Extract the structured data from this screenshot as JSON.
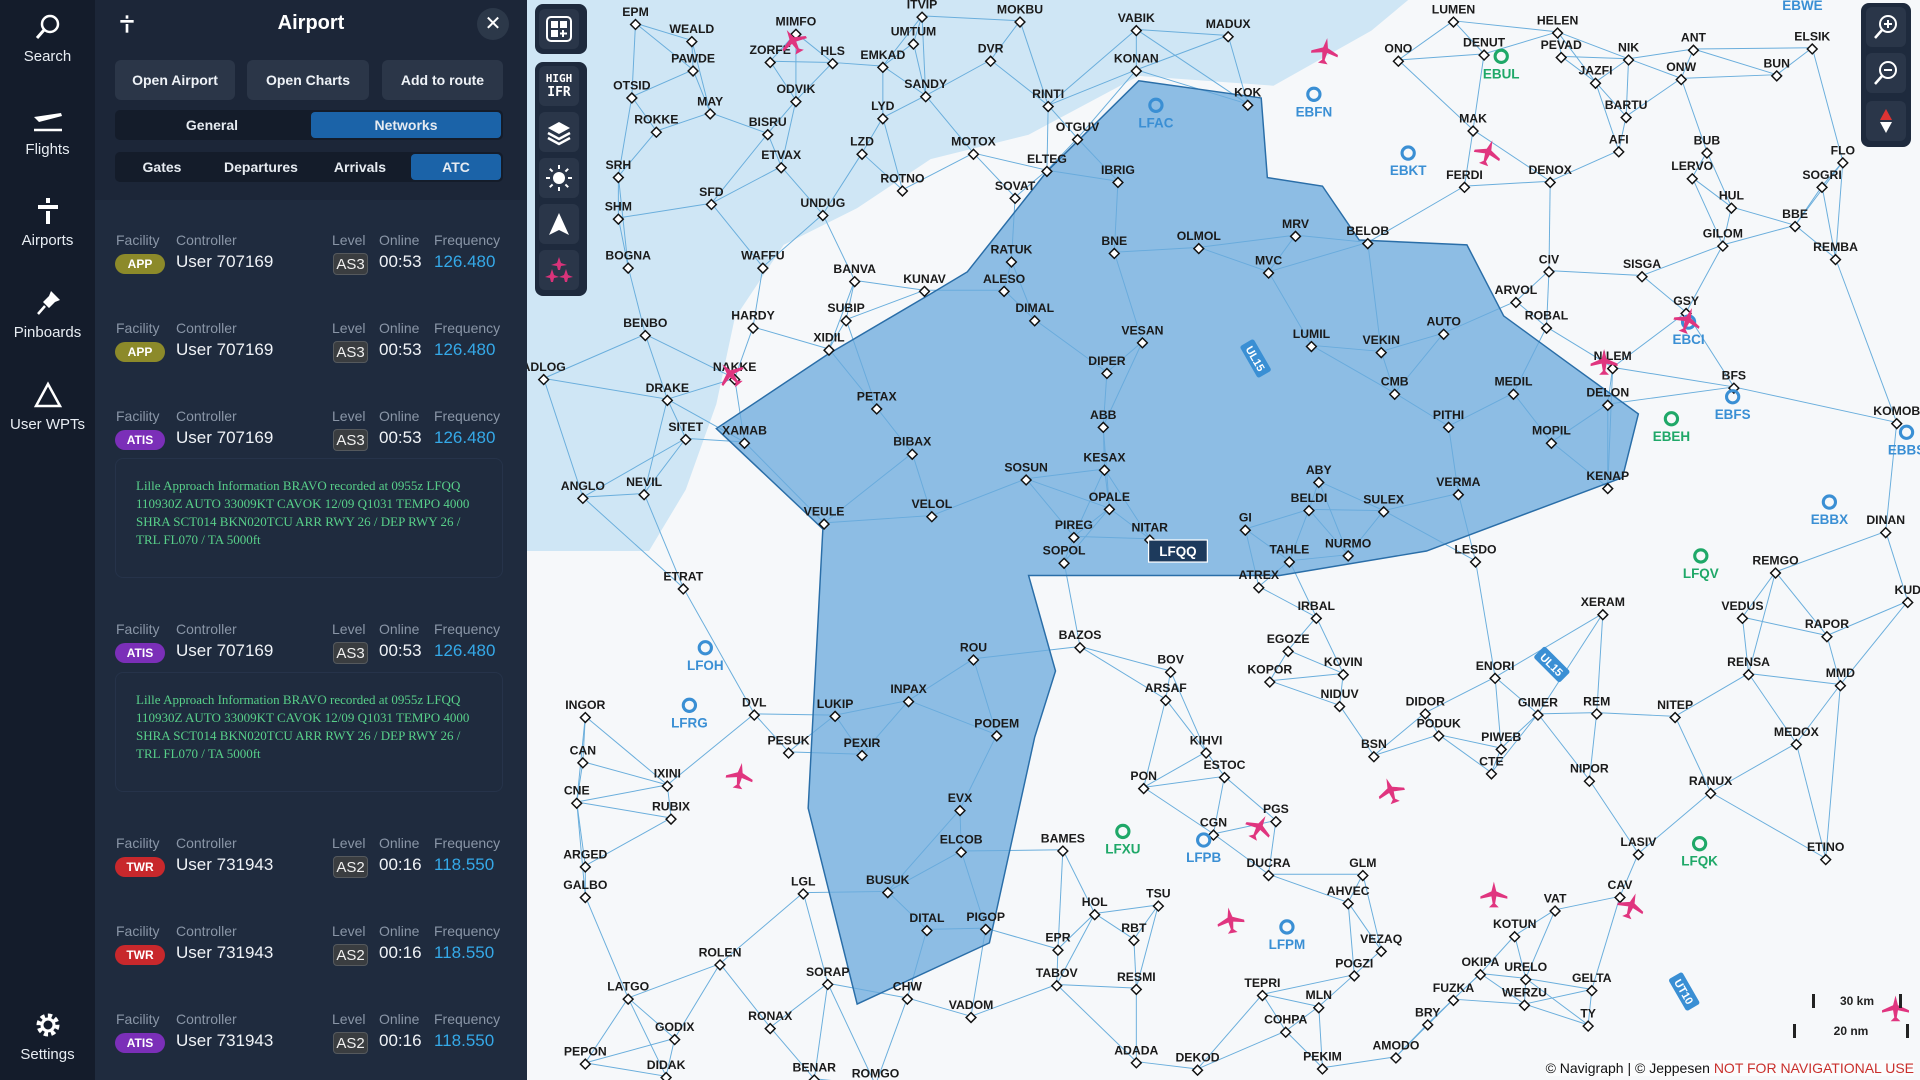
{
  "rail": {
    "items": [
      {
        "label": "Search",
        "icon": "search-icon"
      },
      {
        "label": "Flights",
        "icon": "flights-icon"
      },
      {
        "label": "Airports",
        "icon": "tower-icon"
      },
      {
        "label": "Pinboards",
        "icon": "pin-icon"
      },
      {
        "label": "User WPTs",
        "icon": "triangle-icon"
      }
    ],
    "settings": "Settings"
  },
  "panel": {
    "title": "Airport",
    "buttons": [
      "Open Airport",
      "Open Charts",
      "Add to route"
    ],
    "tabs": [
      "General",
      "Networks"
    ],
    "active_tab": "Networks",
    "subtabs": [
      "Gates",
      "Departures",
      "Arrivals",
      "ATC"
    ],
    "active_subtab": "ATC",
    "headers": {
      "facility": "Facility",
      "controller": "Controller",
      "level": "Level",
      "online": "Online",
      "frequency": "Frequency"
    },
    "rows": [
      {
        "facility": "APP",
        "controller": "User 707169",
        "level": "AS3",
        "online": "00:53",
        "frequency": "126.480"
      },
      {
        "facility": "APP",
        "controller": "User 707169",
        "level": "AS3",
        "online": "00:53",
        "frequency": "126.480"
      },
      {
        "facility": "ATIS",
        "controller": "User 707169",
        "level": "AS3",
        "online": "00:53",
        "frequency": "126.480",
        "atis": "Lille Approach  Information BRAVO  recorded at 0955z LFQQ 110930Z AUTO 33009KT CAVOK 12/09 Q1031 TEMPO 4000 SHRA SCT014 BKN020TCU ARR RWY 26 / DEP RWY 26 / TRL FL070 / TA 5000ft"
      },
      {
        "facility": "ATIS",
        "controller": "User 707169",
        "level": "AS3",
        "online": "00:53",
        "frequency": "126.480",
        "atis": "Lille Approach  Information BRAVO  recorded at 0955z LFQQ 110930Z AUTO 33009KT CAVOK 12/09 Q1031 TEMPO 4000 SHRA SCT014 BKN020TCU ARR RWY 26 / DEP RWY 26 / TRL FL070 / TA 5000ft"
      },
      {
        "facility": "TWR",
        "controller": "User 731943",
        "level": "AS2",
        "online": "00:16",
        "frequency": "118.550"
      },
      {
        "facility": "TWR",
        "controller": "User 731943",
        "level": "AS2",
        "online": "00:16",
        "frequency": "118.550"
      },
      {
        "facility": "ATIS",
        "controller": "User 731943",
        "level": "AS2",
        "online": "00:16",
        "frequency": "118.550"
      }
    ]
  },
  "colors": {
    "APP": "#8c8a2a",
    "ATIS": "#7b2fb8",
    "TWR": "#c8282c",
    "accent": "#1b63a8",
    "frequency": "#35a9e8",
    "tma": "#5a9fd4",
    "airspace": "#cfe6f5"
  },
  "map_tools": {
    "layers_badge_top": "HIGH",
    "layers_badge_bottom": "IFR",
    "icons": [
      "add-widget-icon",
      "layers-icon",
      "brightness-icon",
      "north-up-icon",
      "traffic-icon"
    ]
  },
  "map": {
    "selected_airport": "LFQQ",
    "airway_labels": [
      "UL15",
      "UL15",
      "UT10"
    ],
    "waypoints": [
      "EPM",
      "WEALD",
      "PAWDE",
      "MIMFO",
      "ZORFE",
      "HLS",
      "UMTUM",
      "EMKAD",
      "DVR",
      "MOKBU",
      "VABIK",
      "MADUX",
      "KONAN",
      "SANDY",
      "RINTI",
      "OTSID",
      "MAY",
      "ODVIK",
      "ROKKE",
      "BISRU",
      "LYD",
      "ETVAX",
      "LZD",
      "MOTOX",
      "OTGUV",
      "ELTEG",
      "IBRIG",
      "ROTNO",
      "SOVAT",
      "SRH",
      "SHM",
      "SFD",
      "UNDUG",
      "BOGNA",
      "WAFFU",
      "BANVA",
      "KUNAV",
      "RATUK",
      "ALESO",
      "DIMAL",
      "BNE",
      "OLMOL",
      "MRV",
      "BELOB",
      "MVC",
      "HARDY",
      "BENBO",
      "SUBIP",
      "XIDIL",
      "VESAN",
      "LUMIL",
      "VEKIN",
      "AUTO",
      "ROBAL",
      "ARVOL",
      "CIV",
      "SISGA",
      "DIPER",
      "NAKKE",
      "DRAKE",
      "ADLOG",
      "SITET",
      "XAMAB",
      "PETAX",
      "CMB",
      "PITHI",
      "MEDIL",
      "DELON",
      "MOPIL",
      "BIBAX",
      "ABB",
      "KESAX",
      "SOSUN",
      "VELOL",
      "OPALE",
      "ABY",
      "BELDI",
      "SULEX",
      "VERMA",
      "KENAP",
      "ANGLO",
      "NEVIL",
      "VEULE",
      "PIREG",
      "NITAR",
      "GI",
      "TAHLE",
      "NURMO",
      "LESDO",
      "SOPOL",
      "ATREX",
      "IRBAL",
      "ETRAT",
      "BAZOS",
      "EGOZE",
      "KOVIN",
      "BOV",
      "ARSAF",
      "KOPOR",
      "NIDUV",
      "DIDOR",
      "ENORI",
      "PODUK",
      "ROU",
      "INPAX",
      "PODEM",
      "PEXIR",
      "LUKIP",
      "DVL",
      "PESUK",
      "INGOR",
      "CAN",
      "CNE",
      "IXINI",
      "RUBIX",
      "KIHVI",
      "ESTOC",
      "BSN",
      "PIWEB",
      "CTE",
      "NIPOR",
      "RANUX",
      "PON",
      "CGN",
      "PGS",
      "DUCRA",
      "GLM",
      "AHVEC",
      "EVX",
      "ELCOB",
      "BAMES",
      "ARGED",
      "GALBO",
      "LGL",
      "BUSUK",
      "DITAL",
      "PIGOP",
      "HOL",
      "TSU",
      "RBT",
      "EPR",
      "TABOV",
      "RESMI",
      "VEZAQ",
      "POGZI",
      "TEPRI",
      "MLN",
      "CHW",
      "VADOM",
      "SORAP",
      "ROLEN",
      "LATGO",
      "GODIX",
      "RONAX",
      "PEPON",
      "DIDAK",
      "BENAR",
      "ROMGO",
      "ADADA",
      "DEKOD",
      "PEKIM",
      "COHPA",
      "BRY",
      "AMODO",
      "FUZKA",
      "WERZU",
      "URELO",
      "OKIPA",
      "GELTA",
      "TY",
      "KOTUN",
      "VAT",
      "CAV",
      "LASIV",
      "ETINO",
      "REM",
      "GIMER",
      "NITEP",
      "MEDOX",
      "MMD",
      "RENSA",
      "XERAM",
      "VEDUS",
      "RAPOR",
      "REMGO",
      "DINAN",
      "KUD",
      "BFS",
      "GSY",
      "NILEM",
      "KOMOB",
      "REMBA",
      "BBE",
      "HUL",
      "GILOM",
      "SOGRI",
      "FLO",
      "BUB",
      "LERVO",
      "AFI",
      "BARTU",
      "DENOX",
      "FERDI",
      "MAK",
      "DENUT",
      "JAZFI",
      "NIK",
      "PEVAD",
      "HELEN",
      "ANT",
      "ONW",
      "BUN",
      "ELSIK",
      "LUMEN",
      "ONO",
      "KOK",
      "ITVIP"
    ],
    "airports_blue": [
      "LFAC",
      "EBKT",
      "EBFN",
      "EBCI",
      "EBFS",
      "EBBX",
      "LFOH",
      "LFRG",
      "LFPB",
      "LFPM",
      "EBBS",
      "EBWE"
    ],
    "airports_green": [
      "EBUL",
      "EBEH",
      "LFQV",
      "LFQK",
      "LFXU"
    ]
  },
  "scale": {
    "km": "30 km",
    "nm": "20 nm"
  },
  "copyright": {
    "text": "© Navigraph | © Jeppesen",
    "warning": "NOT FOR NAVIGATIONAL USE"
  }
}
